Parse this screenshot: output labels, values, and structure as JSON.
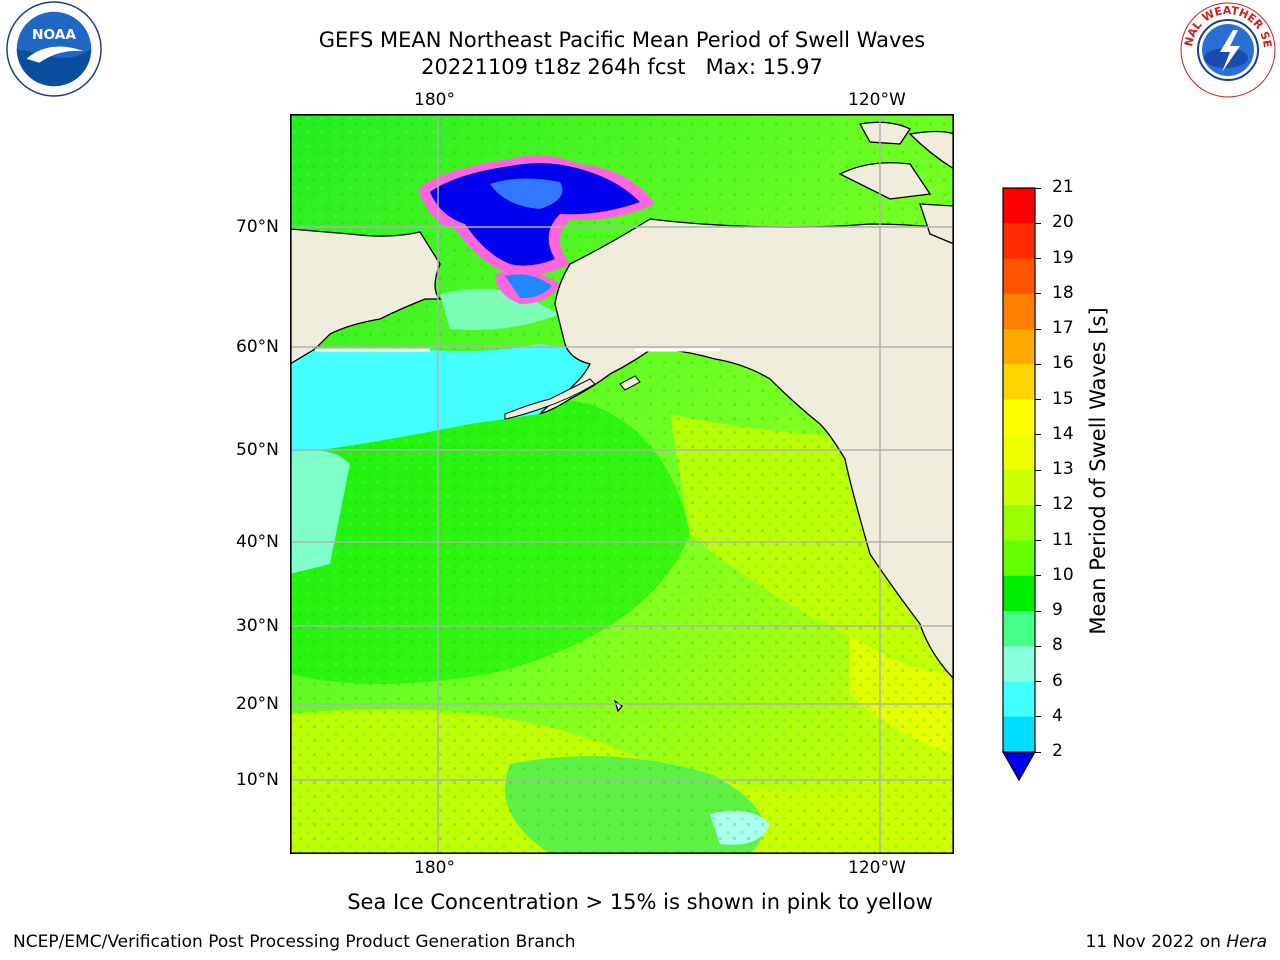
{
  "title_line1": "GEFS MEAN Northeast Pacific Mean Period of Swell Waves",
  "title_line2": "20221109 t18z 264h fcst   Max: 15.97",
  "lon_ticks": [
    "180°",
    "120°W"
  ],
  "lat_ticks": [
    "70°N",
    "60°N",
    "50°N",
    "40°N",
    "30°N",
    "20°N",
    "10°N"
  ],
  "colorbar": {
    "label": "Mean Period of Swell Waves [s]",
    "ticks": [
      "21",
      "20",
      "19",
      "18",
      "17",
      "16",
      "15",
      "14",
      "13",
      "12",
      "11",
      "10",
      "9",
      "8",
      "6",
      "4",
      "2"
    ],
    "colors": [
      "#ff0000",
      "#ff2a00",
      "#ff5500",
      "#ff7f00",
      "#ffaa00",
      "#ffd500",
      "#ffff00",
      "#eeff00",
      "#ccff00",
      "#99ff00",
      "#66ff00",
      "#00ee00",
      "#44ff88",
      "#88ffdd",
      "#44ffff",
      "#00ddff",
      "#0066ff"
    ],
    "extend_color": "#0000ee"
  },
  "note": "Sea Ice Concentration > 15% is shown in pink to yellow",
  "footer_left": "NCEP/EMC/Verification Post Processing Product Generation Branch",
  "footer_right_date": "11 Nov 2022 on ",
  "footer_right_machine": "Hera",
  "logos": {
    "noaa": {
      "text": "NOAA",
      "ring": "NATIONAL OCEANIC AND ATMOSPHERIC ADMINISTRATION · U.S. DEPARTMENT OF COMMERCE"
    },
    "nws": {
      "ring": "NATIONAL WEATHER SERVICE"
    }
  },
  "colors": {
    "land": "#efecdc",
    "ice_pink": "#ff66dd",
    "ice_yellow": "#ffcc33",
    "grid": "#b0b0b0"
  }
}
